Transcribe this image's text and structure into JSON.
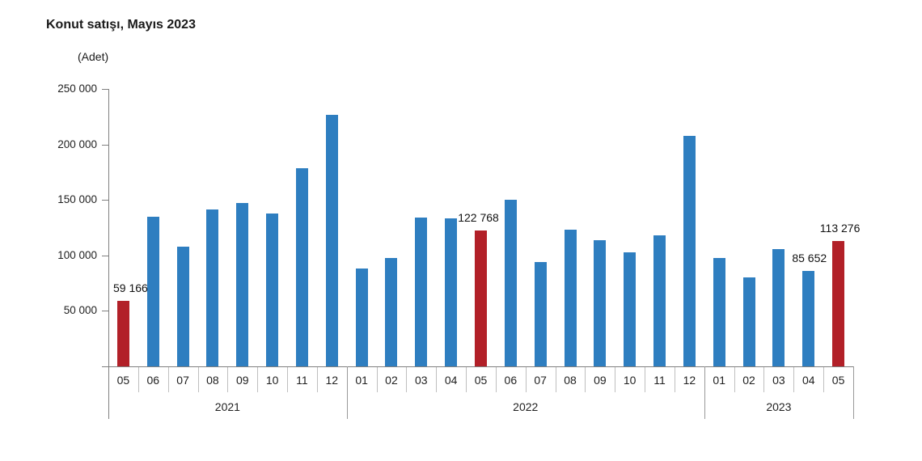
{
  "title": "Konut satışı, Mayıs 2023",
  "unit_label": "(Adet)",
  "colors": {
    "bar_blue": "#2E7EC0",
    "bar_red": "#B22028",
    "axis": "#7F7F7F",
    "background": "#FFFFFF"
  },
  "chart_data": {
    "type": "bar",
    "title": "Konut satışı, Mayıs 2023",
    "ylabel": "(Adet)",
    "ylim": [
      0,
      250000
    ],
    "ytick_interval": 50000,
    "yticks": [
      {
        "value": 250000,
        "label": "250 000"
      },
      {
        "value": 200000,
        "label": "200 000"
      },
      {
        "value": 150000,
        "label": "150 000"
      },
      {
        "value": 100000,
        "label": "100 000"
      },
      {
        "value": 50000,
        "label": "50 000"
      }
    ],
    "grid": false,
    "legend": false,
    "groups": [
      {
        "year": "2021",
        "months": [
          "05",
          "06",
          "07",
          "08",
          "09",
          "10",
          "11",
          "12"
        ],
        "values": [
          59166,
          134731,
          107785,
          141400,
          147143,
          137401,
          178814,
          226503
        ]
      },
      {
        "year": "2022",
        "months": [
          "01",
          "02",
          "03",
          "04",
          "05",
          "06",
          "07",
          "08",
          "09",
          "10",
          "11",
          "12"
        ],
        "values": [
          88306,
          97587,
          134170,
          133058,
          122768,
          150509,
          93902,
          123491,
          113402,
          102660,
          117806,
          207963
        ]
      },
      {
        "year": "2023",
        "months": [
          "01",
          "02",
          "03",
          "04",
          "05"
        ],
        "values": [
          97708,
          80031,
          105476,
          85652,
          113276
        ]
      }
    ],
    "highlighted_bars": [
      "2021-05",
      "2022-05",
      "2023-05"
    ],
    "annotations": [
      {
        "bar": "2021-05",
        "text": "59 166",
        "dx": 9
      },
      {
        "bar": "2022-05",
        "text": "122 768",
        "dx": -3
      },
      {
        "bar": "2023-04",
        "text": "85 652",
        "dx": 1
      },
      {
        "bar": "2023-05",
        "text": "113 276",
        "dx": 2
      }
    ]
  }
}
